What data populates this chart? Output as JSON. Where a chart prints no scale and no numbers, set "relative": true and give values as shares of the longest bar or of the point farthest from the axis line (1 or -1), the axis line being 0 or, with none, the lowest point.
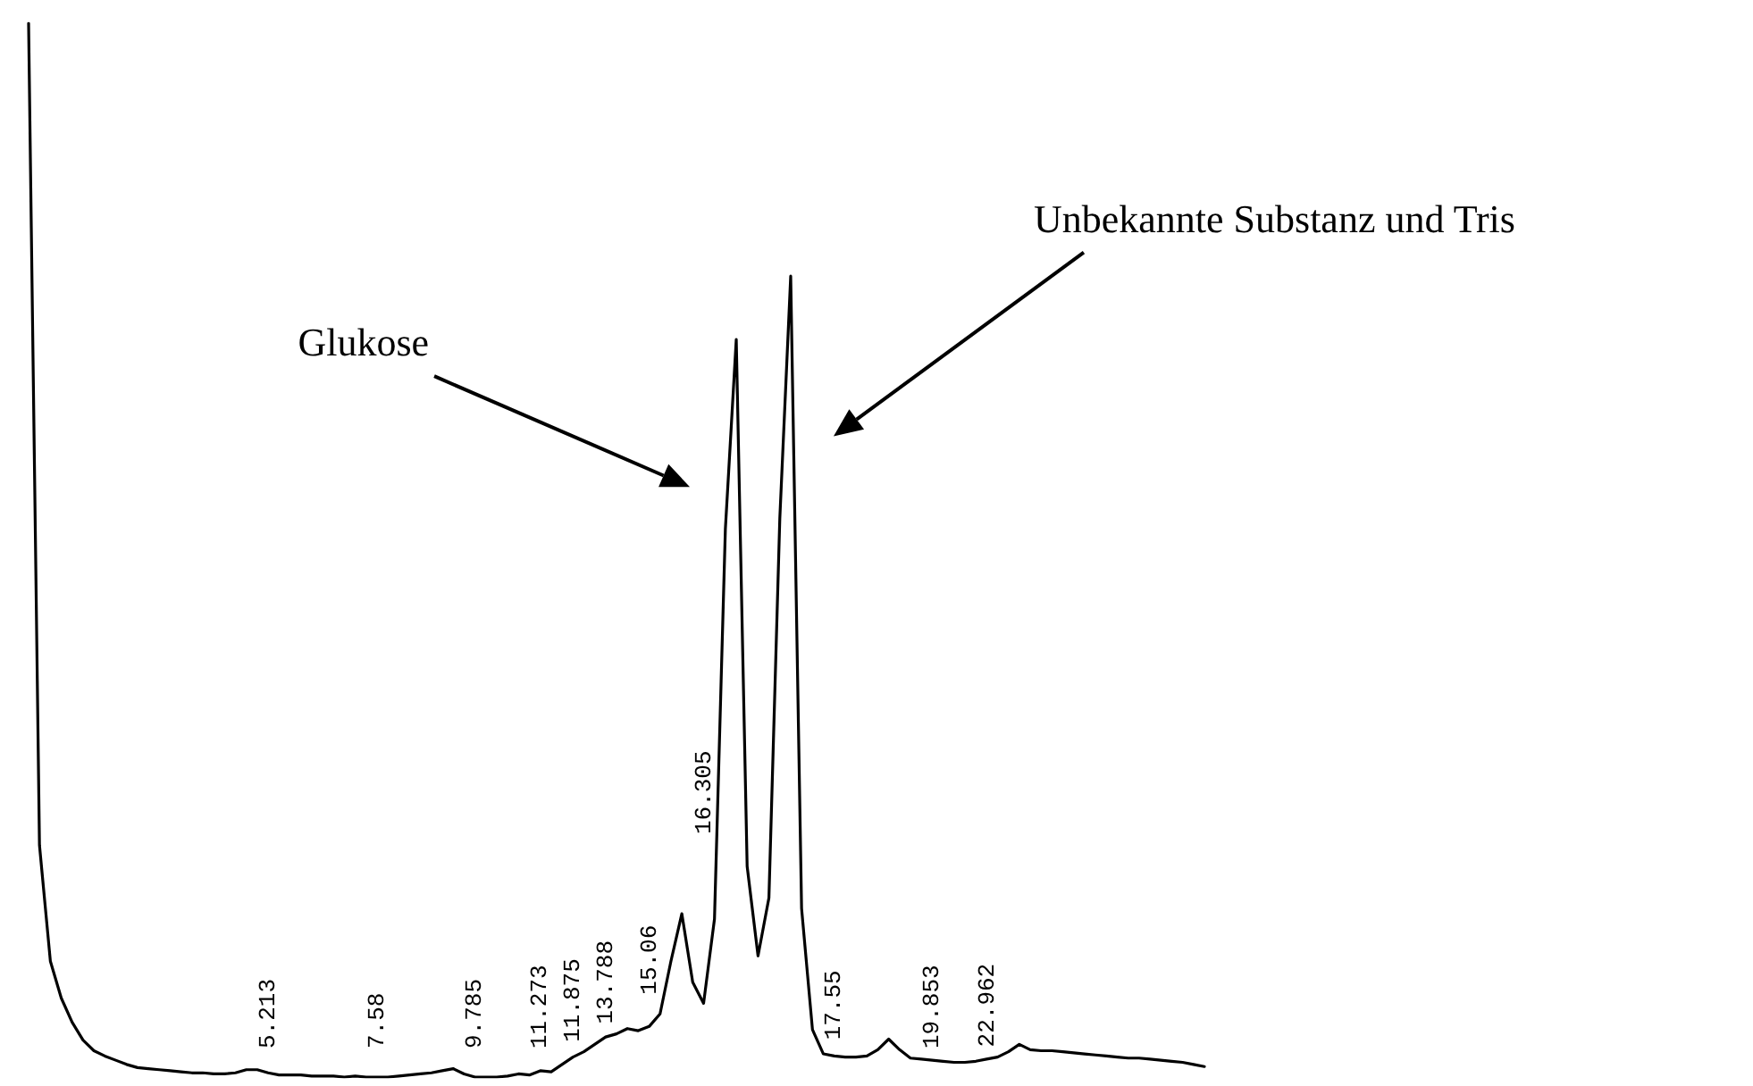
{
  "chart_data": {
    "type": "line",
    "relative": true,
    "color": "#000000",
    "marker": "none",
    "line_style": "solid",
    "grid": false,
    "tick_labels": false,
    "categories": [
      null,
      null,
      null,
      null,
      null,
      null,
      null,
      null,
      null,
      null,
      null,
      null,
      null,
      null,
      null,
      null,
      null,
      null,
      null,
      null,
      null,
      null,
      null,
      null,
      null,
      null,
      null,
      null,
      null,
      null,
      null,
      null,
      null,
      null,
      null,
      null,
      null,
      null,
      null,
      null,
      null,
      null,
      null,
      null,
      null,
      null,
      null,
      null,
      null,
      null,
      null,
      null,
      null,
      null,
      null,
      null,
      null,
      null,
      null,
      null,
      null,
      null,
      null,
      null,
      null,
      null,
      null,
      null,
      null,
      null,
      null,
      null,
      null,
      null,
      null,
      null,
      null,
      null,
      null,
      null,
      null,
      null,
      null,
      null,
      null,
      null,
      null,
      null,
      null,
      null,
      null,
      null,
      null,
      null,
      null,
      null,
      null,
      null,
      null,
      null,
      null,
      null,
      null,
      null,
      null,
      null,
      null,
      null,
      null
    ],
    "values": [
      1.0,
      0.22,
      0.11,
      0.075,
      0.052,
      0.035,
      0.025,
      0.02,
      0.016,
      0.012,
      0.009,
      0.008,
      0.007,
      0.006,
      0.005,
      0.004,
      0.004,
      0.003,
      0.003,
      0.004,
      0.007,
      0.007,
      0.004,
      0.002,
      0.002,
      0.002,
      0.001,
      0.001,
      0.001,
      0,
      0.001,
      0,
      0,
      0,
      0.001,
      0.002,
      0.003,
      0.004,
      0.006,
      0.008,
      0.003,
      0,
      0,
      0,
      0.001,
      0.003,
      0.002,
      0.006,
      0.005,
      0.012,
      0.019,
      0.024,
      0.031,
      0.038,
      0.041,
      0.046,
      0.044,
      0.048,
      0.06,
      0.11,
      0.155,
      0.09,
      0.07,
      0.15,
      0.52,
      0.7,
      0.2,
      0.115,
      0.17,
      0.53,
      0.76,
      0.16,
      0.045,
      0.022,
      0.02,
      0.019,
      0.019,
      0.02,
      0.026,
      0.036,
      0.026,
      0.018,
      0.017,
      0.016,
      0.015,
      0.014,
      0.014,
      0.015,
      0.017,
      0.019,
      0.024,
      0.031,
      0.026,
      0.025,
      0.025,
      0.024,
      0.023,
      0.022,
      0.021,
      0.02,
      0.019,
      0.018,
      0.018,
      0.017,
      0.016,
      0.015,
      0.014,
      0.012,
      0.01
    ],
    "annotations": [
      "Glukose",
      "Unbekannte Substanz und Tris",
      "5.213",
      "7.58",
      "9.785",
      "11.273",
      "11.875",
      "13.788",
      "15.06",
      "16.305",
      "17.55",
      "19.853",
      "22.962"
    ]
  }
}
